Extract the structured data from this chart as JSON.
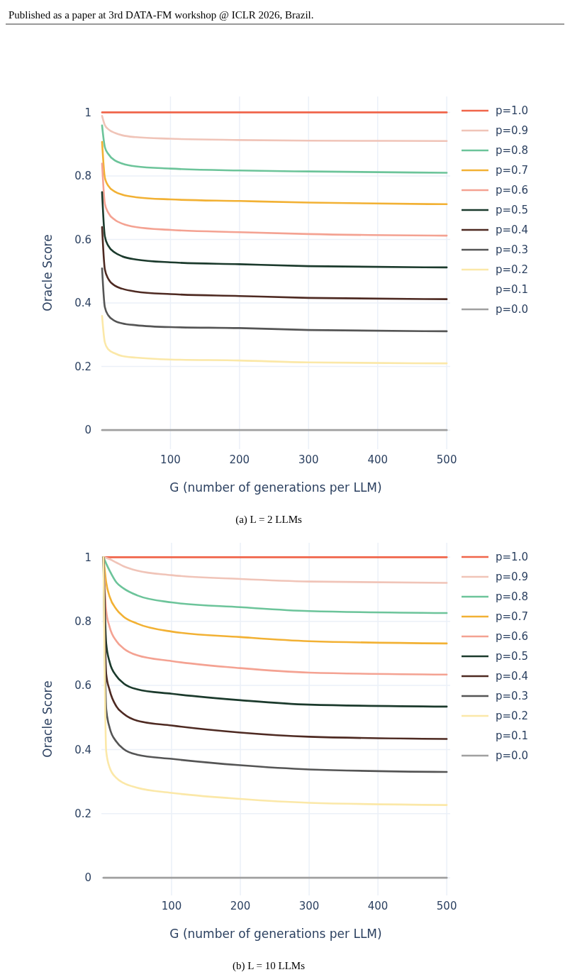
{
  "chart_data": [
    {
      "type": "line",
      "xlabel": "G (number of generations per LLM)",
      "ylabel": "Oracle Score",
      "x": [
        1,
        5,
        10,
        20,
        30,
        50,
        100,
        200,
        300,
        500
      ],
      "xlim": [
        0,
        505
      ],
      "ylim": [
        -0.06,
        1.05
      ],
      "xticks": [
        100,
        200,
        300,
        400,
        500
      ],
      "yticks": [
        0,
        0.2,
        0.4,
        0.6,
        0.8,
        1
      ],
      "grid": true,
      "legend": "right",
      "line_style": "solid",
      "marker": "none",
      "annotations": [
        "Published as a paper at 3rd DATA-FM workshop @ ICLR 2026, Brazil.",
        "(a) L = 2 LLMs"
      ],
      "series": [
        {
          "name": "p=1.0",
          "color": "#f0654a",
          "values": [
            1,
            1,
            1,
            1,
            1,
            1,
            1,
            1,
            1,
            1
          ]
        },
        {
          "name": "p=0.9",
          "color": "#f0c4b8",
          "values": [
            0.989,
            0.96,
            0.947,
            0.935,
            0.928,
            0.922,
            0.917,
            0.913,
            0.911,
            0.91
          ]
        },
        {
          "name": "p=0.8",
          "color": "#6cc49a",
          "values": [
            0.959,
            0.891,
            0.869,
            0.848,
            0.839,
            0.83,
            0.823,
            0.817,
            0.814,
            0.81
          ]
        },
        {
          "name": "p=0.7",
          "color": "#f2b134",
          "values": [
            0.907,
            0.795,
            0.769,
            0.75,
            0.741,
            0.733,
            0.726,
            0.721,
            0.716,
            0.711
          ]
        },
        {
          "name": "p=0.6",
          "color": "#f4a292",
          "values": [
            0.839,
            0.713,
            0.684,
            0.661,
            0.65,
            0.639,
            0.63,
            0.623,
            0.617,
            0.612
          ]
        },
        {
          "name": "p=0.5",
          "color": "#1b3a2c",
          "values": [
            0.749,
            0.61,
            0.58,
            0.558,
            0.547,
            0.537,
            0.528,
            0.522,
            0.516,
            0.512
          ]
        },
        {
          "name": "p=0.4",
          "color": "#4e2a22",
          "values": [
            0.639,
            0.506,
            0.476,
            0.454,
            0.445,
            0.436,
            0.428,
            0.422,
            0.416,
            0.412
          ]
        },
        {
          "name": "p=0.3",
          "color": "#555555",
          "values": [
            0.509,
            0.387,
            0.361,
            0.343,
            0.336,
            0.33,
            0.324,
            0.321,
            0.315,
            0.311
          ]
        },
        {
          "name": "p=0.2",
          "color": "#fbe8a8",
          "values": [
            0.359,
            0.276,
            0.254,
            0.241,
            0.233,
            0.228,
            0.222,
            0.219,
            0.213,
            0.21
          ]
        },
        {
          "name": "p=0.1",
          "values": [
            null,
            null,
            null,
            null,
            null,
            null,
            null,
            null,
            null,
            null
          ]
        },
        {
          "name": "p=0.0",
          "color": "#a0a0a0",
          "values": [
            0,
            0,
            0,
            0,
            0,
            0,
            0,
            0,
            0,
            0
          ]
        }
      ]
    },
    {
      "type": "line",
      "xlabel": "G (number of generations per LLM)",
      "ylabel": "Oracle Score",
      "x": [
        1,
        5,
        10,
        20,
        30,
        50,
        100,
        200,
        300,
        500
      ],
      "xlim": [
        -2,
        505
      ],
      "ylim": [
        -0.055,
        1.045
      ],
      "xticks": [
        100,
        200,
        300,
        400,
        500
      ],
      "yticks": [
        0,
        0.2,
        0.4,
        0.6,
        0.8,
        1
      ],
      "grid": true,
      "legend": "right",
      "line_style": "solid",
      "marker": "none",
      "annotations": [
        "(b) L = 10 LLMs"
      ],
      "series": [
        {
          "name": "p=1.0",
          "color": "#f0654a",
          "values": [
            1,
            1,
            1,
            1,
            1,
            1,
            1,
            1,
            1,
            1
          ]
        },
        {
          "name": "p=0.9",
          "color": "#f0c4b8",
          "values": [
            1,
            0.998,
            0.994,
            0.983,
            0.972,
            0.958,
            0.944,
            0.932,
            0.924,
            0.92
          ]
        },
        {
          "name": "p=0.8",
          "color": "#6cc49a",
          "values": [
            1,
            0.98,
            0.958,
            0.921,
            0.903,
            0.881,
            0.859,
            0.844,
            0.832,
            0.826
          ]
        },
        {
          "name": "p=0.7",
          "color": "#f2b134",
          "values": [
            1,
            0.921,
            0.877,
            0.837,
            0.815,
            0.793,
            0.768,
            0.751,
            0.738,
            0.731
          ]
        },
        {
          "name": "p=0.6",
          "color": "#f4a292",
          "values": [
            1,
            0.833,
            0.782,
            0.738,
            0.716,
            0.694,
            0.676,
            0.654,
            0.64,
            0.634
          ]
        },
        {
          "name": "p=0.5",
          "color": "#1b3a2c",
          "values": [
            1,
            0.731,
            0.673,
            0.629,
            0.607,
            0.588,
            0.574,
            0.554,
            0.54,
            0.534
          ]
        },
        {
          "name": "p=0.4",
          "color": "#4e2a22",
          "values": [
            1,
            0.636,
            0.585,
            0.534,
            0.512,
            0.49,
            0.475,
            0.453,
            0.44,
            0.433
          ]
        },
        {
          "name": "p=0.3",
          "color": "#555555",
          "values": [
            1,
            0.526,
            0.468,
            0.424,
            0.402,
            0.384,
            0.371,
            0.351,
            0.338,
            0.33
          ]
        },
        {
          "name": "p=0.2",
          "color": "#fbe8a8",
          "values": [
            1,
            0.395,
            0.344,
            0.311,
            0.296,
            0.281,
            0.265,
            0.246,
            0.234,
            0.227
          ]
        },
        {
          "name": "p=0.1",
          "values": [
            null,
            null,
            null,
            null,
            null,
            null,
            null,
            null,
            null,
            null
          ]
        },
        {
          "name": "p=0.0",
          "color": "#a0a0a0",
          "values": [
            0,
            0,
            0,
            0,
            0,
            0,
            0,
            0,
            0,
            0
          ]
        }
      ]
    }
  ]
}
